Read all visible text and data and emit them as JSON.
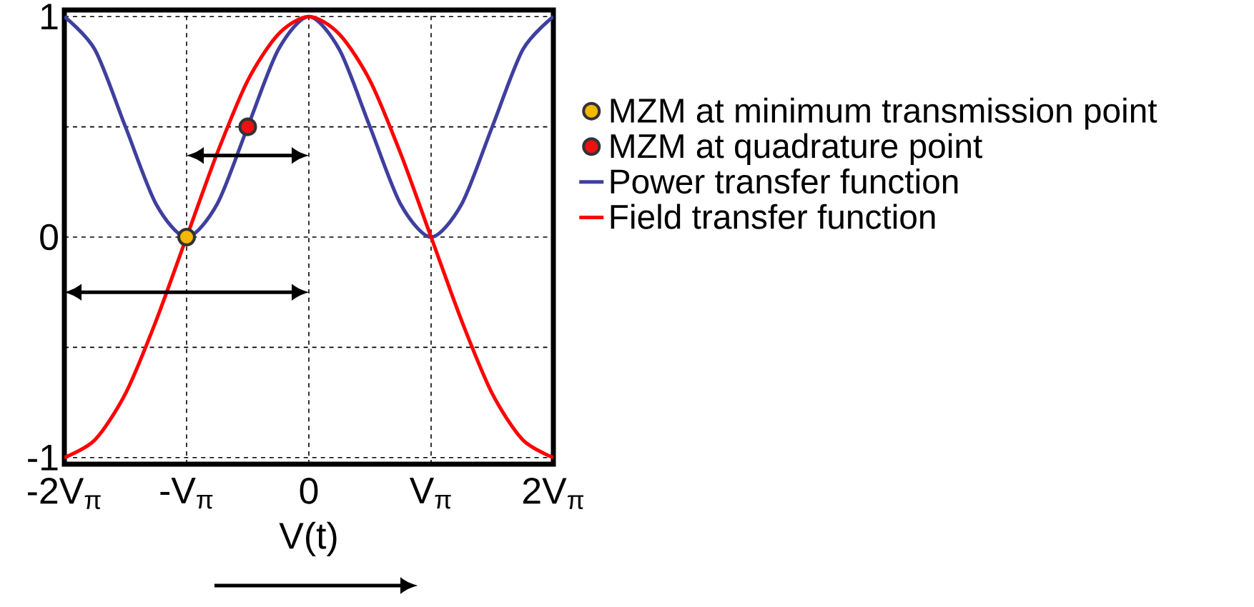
{
  "chart_data": {
    "type": "line",
    "xlabel": "V(t)",
    "x": [
      -2,
      -1.75,
      -1.5,
      -1.25,
      -1,
      -0.75,
      -0.5,
      -0.25,
      0,
      0.25,
      0.5,
      0.75,
      1,
      1.25,
      1.5,
      1.75,
      2
    ],
    "series": [
      {
        "name": "MZM at minimum transmission point",
        "type": "scatter",
        "color": "#f5b800",
        "marker": "circle",
        "x": [
          -1
        ],
        "values": [
          0
        ]
      },
      {
        "name": "MZM at quadrature point",
        "type": "scatter",
        "color": "#ee1111",
        "marker": "circle",
        "x": [
          -0.5
        ],
        "values": [
          0.5
        ]
      },
      {
        "name": "Power transfer function",
        "color": "#3f3f9f",
        "values": [
          1,
          0.85,
          0.5,
          0.15,
          0,
          0.15,
          0.5,
          0.85,
          1,
          0.85,
          0.5,
          0.15,
          0,
          0.15,
          0.5,
          0.85,
          1
        ]
      },
      {
        "name": "Field transfer function",
        "color": "#ff0000",
        "values": [
          -1,
          -0.92,
          -0.71,
          -0.38,
          0,
          0.38,
          0.71,
          0.92,
          1,
          0.92,
          0.71,
          0.38,
          0,
          -0.38,
          -0.71,
          -0.92,
          -1
        ]
      }
    ],
    "xlim": [
      -2,
      2
    ],
    "ylim": [
      -1.03,
      1.03
    ],
    "xticks": [
      {
        "value": -2,
        "label": "-2V$_{π}$"
      },
      {
        "value": -1,
        "label": "-V$_{π}$"
      },
      0,
      {
        "value": 1,
        "label": "V$_{π}$"
      },
      {
        "value": 2,
        "label": "2V$_{π}$"
      }
    ],
    "yticks": [
      -1,
      {
        "value": -0.5,
        "label": null
      },
      0,
      {
        "value": 0.5,
        "label": null
      },
      1
    ],
    "grid": true,
    "legend": "right",
    "marker": "none",
    "line_style": "solid"
  }
}
